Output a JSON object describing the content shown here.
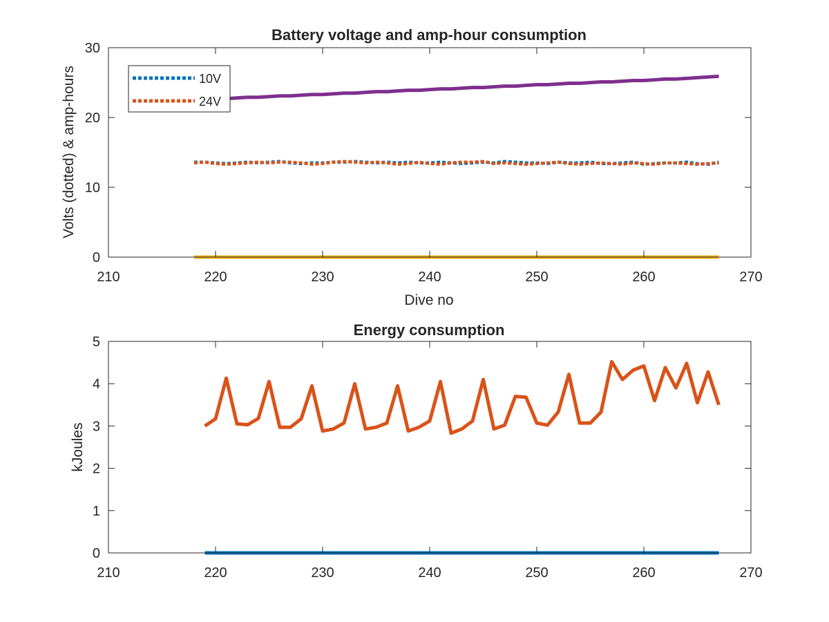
{
  "chart_data": [
    {
      "type": "line",
      "title": "Battery voltage and amp-hour consumption",
      "xlabel": "Dive no",
      "ylabel": "Volts (dotted) & amp-hours",
      "xlim": [
        210,
        270
      ],
      "ylim": [
        0,
        30
      ],
      "xticks": [
        "210",
        "220",
        "230",
        "240",
        "250",
        "260",
        "270"
      ],
      "yticks": [
        "0",
        "10",
        "20",
        "30"
      ],
      "legend": {
        "placement": "top-left",
        "entries": [
          "10V",
          "24V"
        ]
      },
      "grid": false,
      "x": [
        218,
        219,
        220,
        221,
        222,
        223,
        224,
        225,
        226,
        227,
        228,
        229,
        230,
        231,
        232,
        233,
        234,
        235,
        236,
        237,
        238,
        239,
        240,
        241,
        242,
        243,
        244,
        245,
        246,
        247,
        248,
        249,
        250,
        251,
        252,
        253,
        254,
        255,
        256,
        257,
        258,
        259,
        260,
        261,
        262,
        263,
        264,
        265,
        266,
        267
      ],
      "series": [
        {
          "name": "10V",
          "style": "dotted",
          "color": "#0072BD",
          "values": [
            13.6,
            13.6,
            13.5,
            13.4,
            13.5,
            13.6,
            13.5,
            13.6,
            13.7,
            13.5,
            13.4,
            13.5,
            13.5,
            13.6,
            13.6,
            13.7,
            13.6,
            13.5,
            13.6,
            13.5,
            13.6,
            13.5,
            13.5,
            13.6,
            13.5,
            13.4,
            13.5,
            13.6,
            13.5,
            13.7,
            13.6,
            13.5,
            13.5,
            13.4,
            13.6,
            13.5,
            13.5,
            13.6,
            13.4,
            13.4,
            13.5,
            13.6,
            13.3,
            13.4,
            13.5,
            13.5,
            13.6,
            13.4,
            13.3,
            13.6
          ]
        },
        {
          "name": "24V",
          "style": "dotted",
          "color": "#D95319",
          "values": [
            13.5,
            13.6,
            13.4,
            13.3,
            13.4,
            13.5,
            13.6,
            13.5,
            13.6,
            13.6,
            13.5,
            13.3,
            13.4,
            13.6,
            13.7,
            13.6,
            13.5,
            13.6,
            13.5,
            13.3,
            13.4,
            13.6,
            13.4,
            13.3,
            13.5,
            13.6,
            13.6,
            13.7,
            13.4,
            13.5,
            13.4,
            13.3,
            13.4,
            13.5,
            13.6,
            13.4,
            13.3,
            13.4,
            13.5,
            13.4,
            13.3,
            13.5,
            13.4,
            13.3,
            13.5,
            13.5,
            13.4,
            13.3,
            13.4,
            13.5
          ]
        },
        {
          "style": "solid",
          "color": "#7E2F8E",
          "values": [
            22.5,
            22.6,
            22.7,
            22.7,
            22.8,
            22.9,
            22.9,
            23.0,
            23.1,
            23.1,
            23.2,
            23.3,
            23.3,
            23.4,
            23.5,
            23.5,
            23.6,
            23.7,
            23.7,
            23.8,
            23.9,
            23.9,
            24.0,
            24.1,
            24.1,
            24.2,
            24.3,
            24.3,
            24.4,
            24.5,
            24.5,
            24.6,
            24.7,
            24.7,
            24.8,
            24.9,
            24.9,
            25.0,
            25.1,
            25.1,
            25.2,
            25.3,
            25.3,
            25.4,
            25.5,
            25.5,
            25.6,
            25.7,
            25.8,
            25.9
          ]
        },
        {
          "style": "solid",
          "color": "#EDB120",
          "values": [
            0,
            0,
            0,
            0,
            0,
            0,
            0,
            0,
            0,
            0,
            0,
            0,
            0,
            0,
            0,
            0,
            0,
            0,
            0,
            0,
            0,
            0,
            0,
            0,
            0,
            0,
            0,
            0,
            0,
            0,
            0,
            0,
            0,
            0,
            0,
            0,
            0,
            0,
            0,
            0,
            0,
            0,
            0,
            0,
            0,
            0,
            0,
            0,
            0,
            0
          ]
        }
      ]
    },
    {
      "type": "line",
      "title": "Energy consumption",
      "xlabel": "",
      "ylabel": "kJoules",
      "xlim": [
        210,
        270
      ],
      "ylim": [
        0,
        5
      ],
      "xticks": [
        "210",
        "220",
        "230",
        "240",
        "250",
        "260",
        "270"
      ],
      "yticks": [
        "0",
        "1",
        "2",
        "3",
        "4",
        "5"
      ],
      "grid": false,
      "x": [
        219,
        220,
        221,
        222,
        223,
        224,
        225,
        226,
        227,
        228,
        229,
        230,
        231,
        232,
        233,
        234,
        235,
        236,
        237,
        238,
        239,
        240,
        241,
        242,
        243,
        244,
        245,
        246,
        247,
        248,
        249,
        250,
        251,
        252,
        253,
        254,
        255,
        256,
        257,
        258,
        259,
        260,
        261,
        262,
        263,
        264,
        265,
        266,
        267
      ],
      "series": [
        {
          "style": "solid",
          "color": "#0072BD",
          "values": [
            0,
            0,
            0,
            0,
            0,
            0,
            0,
            0,
            0,
            0,
            0,
            0,
            0,
            0,
            0,
            0,
            0,
            0,
            0,
            0,
            0,
            0,
            0,
            0,
            0,
            0,
            0,
            0,
            0,
            0,
            0,
            0,
            0,
            0,
            0,
            0,
            0,
            0,
            0,
            0,
            0,
            0,
            0,
            0,
            0,
            0,
            0,
            0,
            0
          ]
        },
        {
          "style": "solid",
          "color": "#D95319",
          "values": [
            3.0,
            3.17,
            4.13,
            3.05,
            3.03,
            3.18,
            4.05,
            2.97,
            2.97,
            3.17,
            3.95,
            2.88,
            2.93,
            3.07,
            4.0,
            2.93,
            2.97,
            3.07,
            3.95,
            2.88,
            2.97,
            3.12,
            4.05,
            2.83,
            2.93,
            3.12,
            4.1,
            2.93,
            3.02,
            3.7,
            3.68,
            3.07,
            3.02,
            3.33,
            4.22,
            3.07,
            3.07,
            3.33,
            4.52,
            4.1,
            4.32,
            4.42,
            3.6,
            4.38,
            3.9,
            4.48,
            3.55,
            4.28,
            3.5
          ]
        }
      ]
    }
  ]
}
